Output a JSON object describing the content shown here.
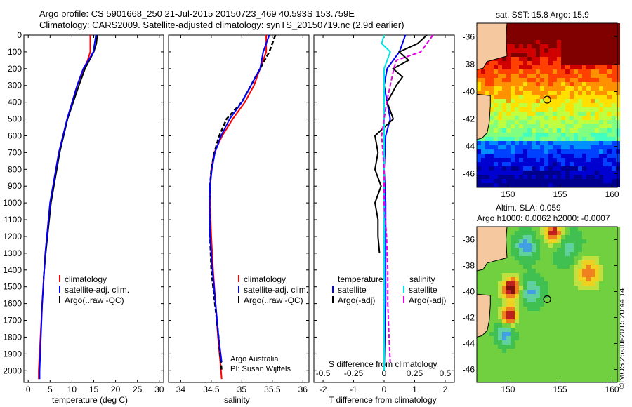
{
  "header": {
    "title_line1": "Argo profile: CS 5901668_250 21-Jul-2015 20150723_469 40.593S 153.759E",
    "title_line2": "Climatology: CARS2009. Satellite-adjusted climatology: synTS_20150719.nc (2.9d earlier)"
  },
  "footer": {
    "copyright": "©IMOS 26-Jul-2015 20:44:14",
    "credit_line1": "Argo Australia",
    "credit_line2": "PI: Susan Wijffels"
  },
  "colors": {
    "climatology": "#ff0000",
    "satellite": "#0000ff",
    "argo": "#000000",
    "s_satellite": "#00e5e5",
    "s_argo": "#e600e6",
    "land": "#f5c8a0"
  },
  "chart_data": [
    {
      "type": "line",
      "title": "",
      "xlabel": "temperature (deg C)",
      "ylabel": "",
      "xlim": [
        -1,
        31
      ],
      "ylim": [
        2070,
        0
      ],
      "xticks": [
        "0",
        "5",
        "10",
        "15",
        "20",
        "25",
        "30"
      ],
      "yticks": [
        "0",
        "100",
        "200",
        "300",
        "400",
        "500",
        "600",
        "700",
        "800",
        "900",
        "1000",
        "1100",
        "1200",
        "1300",
        "1400",
        "1500",
        "1600",
        "1700",
        "1800",
        "1900",
        "2000"
      ],
      "legend": [
        "climatology",
        "satellite-adj. clim.",
        "Argo(..raw -QC)"
      ],
      "legend_position": "lower-right",
      "series": [
        {
          "name": "climatology",
          "depth": [
            0,
            100,
            150,
            200,
            300,
            500,
            700,
            1000,
            1300,
            1600,
            2000,
            2050
          ],
          "values": [
            14.2,
            14.2,
            13.6,
            12.7,
            11.2,
            8.9,
            7.0,
            5.0,
            3.9,
            3.2,
            2.4,
            2.4
          ]
        },
        {
          "name": "satellite-adj. clim.",
          "depth": [
            0,
            100,
            150,
            200,
            300,
            500,
            700,
            1000,
            1300,
            1600,
            2000,
            2050
          ],
          "values": [
            15.5,
            14.9,
            13.8,
            12.6,
            11.2,
            8.9,
            7.0,
            5.0,
            3.9,
            3.2,
            2.6,
            2.6
          ]
        },
        {
          "name": "Argo(..raw -QC)",
          "depth": [
            0,
            50,
            100,
            150,
            200,
            300,
            500,
            700,
            1000,
            1300,
            1450
          ],
          "values": [
            15.8,
            15.6,
            15.0,
            14.0,
            13.0,
            11.6,
            9.0,
            7.2,
            5.2,
            4.0,
            3.5
          ]
        }
      ]
    },
    {
      "type": "line",
      "xlabel": "salinity",
      "xlim": [
        33.8,
        36.1
      ],
      "ylim": [
        2070,
        0
      ],
      "xticks": [
        "34",
        "34.5",
        "35",
        "35.5",
        "36"
      ],
      "legend": [
        "climatology",
        "satellite-adj. clim.",
        "Argo(..raw -QC)"
      ],
      "legend_position": "lower-right",
      "series": [
        {
          "name": "climatology",
          "depth": [
            0,
            100,
            200,
            300,
            400,
            500,
            600,
            700,
            800,
            900,
            1000,
            1200,
            1400,
            1600,
            1800,
            2000,
            2050
          ],
          "values": [
            35.4,
            35.4,
            35.3,
            35.2,
            35.05,
            34.85,
            34.68,
            34.55,
            34.5,
            34.48,
            34.48,
            34.5,
            34.53,
            34.57,
            34.61,
            34.66,
            34.67
          ]
        },
        {
          "name": "satellite-adj. clim.",
          "depth": [
            0,
            50,
            100,
            200,
            300,
            400,
            500,
            600,
            700,
            800,
            900,
            1000,
            1200,
            1400,
            1600,
            1800,
            1950
          ],
          "values": [
            35.45,
            35.4,
            35.35,
            35.3,
            35.15,
            35.0,
            34.8,
            34.66,
            34.56,
            34.51,
            34.48,
            34.47,
            34.48,
            34.52,
            34.57,
            34.62,
            34.67
          ]
        },
        {
          "name": "Argo(..raw -QC)",
          "depth": [
            0,
            50,
            100,
            200,
            300,
            400,
            500,
            600,
            700,
            800,
            900,
            1000,
            1200,
            1400,
            1600,
            1800,
            2000
          ],
          "values": [
            35.55,
            35.5,
            35.45,
            35.3,
            35.15,
            35.0,
            34.75,
            34.63,
            34.55,
            34.5,
            34.48,
            34.47,
            34.48,
            34.5,
            34.56,
            34.62,
            34.67
          ]
        }
      ]
    },
    {
      "type": "line",
      "xlabel": "T difference from climatology",
      "x2label": "S difference from climatology",
      "xlim": [
        -2.3,
        2.3
      ],
      "ylim": [
        2070,
        0
      ],
      "xticks": [
        "-2",
        "-1",
        "0",
        "1",
        "2"
      ],
      "x2ticks": [
        "-0.5",
        "-0.25",
        "0",
        "0.25",
        "0.5"
      ],
      "legend": [
        "temperature",
        "satellite",
        "Argo(-adj)",
        "salinity",
        "satellite",
        "Argo(-adj)"
      ],
      "legend_position": "lower-center",
      "series": [
        {
          "name": "T satellite",
          "depth": [
            0,
            100,
            200,
            300,
            400,
            500,
            600,
            800,
            1000,
            1300,
            1600,
            2000
          ],
          "values": [
            0.7,
            0.5,
            0.1,
            0.0,
            0.1,
            0.2,
            0.05,
            0.0,
            0.05,
            0.05,
            0.05,
            0.0
          ]
        },
        {
          "name": "T Argo(-adj)",
          "depth": [
            0,
            50,
            100,
            150,
            200,
            250,
            300,
            350,
            400,
            450,
            500,
            600,
            700,
            800,
            900,
            1000,
            1100,
            1200,
            1300
          ],
          "values": [
            1.4,
            1.1,
            0.5,
            0.8,
            0.3,
            0.6,
            0.4,
            0.25,
            0.1,
            0.2,
            0.3,
            -0.3,
            -0.2,
            -0.3,
            -0.1,
            -0.3,
            -0.2,
            -0.2,
            -0.15
          ]
        },
        {
          "name": "S satellite",
          "depth": [
            0,
            50,
            100,
            200,
            300,
            500,
            800,
            1200,
            1600,
            2000
          ],
          "values": [
            0.0,
            -0.02,
            0.05,
            0.0,
            0.0,
            0.0,
            0.0,
            0.0,
            0.0,
            0.0
          ]
        },
        {
          "name": "S Argo(-adj)",
          "depth": [
            0,
            50,
            100,
            150,
            200,
            300,
            400,
            500,
            600,
            800,
            1000,
            1200,
            1400,
            1600,
            1800,
            1950
          ],
          "values": [
            0.4,
            0.35,
            0.3,
            0.1,
            0.08,
            0.05,
            0.02,
            0.0,
            -0.02,
            0.0,
            0.0,
            0.02,
            0.03,
            0.03,
            0.04,
            0.05
          ]
        }
      ]
    },
    {
      "type": "heatmap",
      "title": "sat. SST: 15.8 Argo: 15.9",
      "xticks": [
        "150",
        "155",
        "160"
      ],
      "yticks": [
        "-36",
        "-38",
        "-40",
        "-42",
        "-44",
        "-46"
      ],
      "xlim": [
        147,
        160.5
      ],
      "ylim": [
        -47,
        -35
      ],
      "marker": {
        "lon": 153.759,
        "lat": -40.593
      }
    },
    {
      "type": "heatmap",
      "title": "Altim. SLA: 0.059",
      "subtitle": "Argo h1000: 0.0062 h2000: -0.0007",
      "xticks": [
        "150",
        "155",
        "160"
      ],
      "yticks": [
        "-36",
        "-38",
        "-40",
        "-42",
        "-44",
        "-46"
      ],
      "xlim": [
        147,
        160.5
      ],
      "ylim": [
        -47,
        -35
      ],
      "marker": {
        "lon": 153.759,
        "lat": -40.593
      }
    }
  ]
}
